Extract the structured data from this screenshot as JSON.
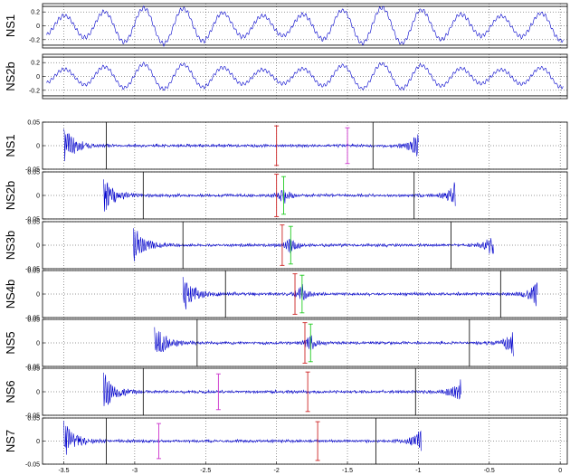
{
  "chart_data": [
    {
      "type": "line",
      "panel": "top",
      "ylabel": "NS1",
      "ylim": [
        -0.32,
        0.32
      ],
      "yticks": [
        -0.2,
        0,
        0.2
      ],
      "xlim": [
        -3.65,
        0.05
      ],
      "grid": true,
      "hlines": [
        -0.28,
        0.28
      ],
      "color": "#0000cc",
      "signal": {
        "kind": "oscillation",
        "periods": 13,
        "amplitude": 0.2,
        "envelope": 0.3,
        "noise": 0.035
      }
    },
    {
      "type": "line",
      "panel": "top",
      "ylabel": "NS2b",
      "ylim": [
        -0.32,
        0.32
      ],
      "yticks": [
        -0.2,
        0,
        0.2
      ],
      "xlim": [
        -3.65,
        0.05
      ],
      "grid": true,
      "hlines": [
        -0.28,
        0.28
      ],
      "color": "#0000cc",
      "signal": {
        "kind": "oscillation",
        "periods": 13,
        "amplitude": 0.14,
        "envelope": 0.3,
        "noise": 0.03
      }
    },
    {
      "type": "line",
      "panel": "event",
      "ylabel": "NS1",
      "ylim": [
        -0.05,
        0.05
      ],
      "yticks": [
        -0.05,
        0,
        0.05
      ],
      "xlim": [
        -3.65,
        0.05
      ],
      "grid": true,
      "trace": [
        -3.5,
        -1.0
      ],
      "vlines": [
        {
          "x": -3.2,
          "color": "#000000"
        },
        {
          "x": -1.32,
          "color": "#000000"
        }
      ],
      "error_bars": [
        {
          "x": -2.0,
          "y_low": -0.042,
          "y_high": 0.042,
          "color": "#cc2222"
        },
        {
          "x": -1.5,
          "y_low": -0.038,
          "y_high": 0.038,
          "color": "#cc33cc"
        }
      ]
    },
    {
      "type": "line",
      "panel": "event",
      "ylabel": "NS2b",
      "ylim": [
        -0.05,
        0.05
      ],
      "yticks": [
        -0.05,
        0,
        0.05
      ],
      "xlim": [
        -3.65,
        0.05
      ],
      "grid": true,
      "trace": [
        -3.22,
        -0.74
      ],
      "vlines": [
        {
          "x": -2.94,
          "color": "#000000"
        },
        {
          "x": -1.03,
          "color": "#000000"
        }
      ],
      "error_bars": [
        {
          "x": -2.0,
          "y_low": -0.045,
          "y_high": 0.045,
          "color": "#cc2222"
        },
        {
          "x": -1.95,
          "y_low": -0.04,
          "y_high": 0.04,
          "color": "#22cc22"
        }
      ]
    },
    {
      "type": "line",
      "panel": "event",
      "ylabel": "NS3b",
      "ylim": [
        -0.05,
        0.05
      ],
      "yticks": [
        -0.05,
        0,
        0.05
      ],
      "xlim": [
        -3.65,
        0.05
      ],
      "grid": true,
      "trace": [
        -3.01,
        -0.47
      ],
      "vlines": [
        {
          "x": -2.66,
          "color": "#000000"
        },
        {
          "x": -0.77,
          "color": "#000000"
        }
      ],
      "error_bars": [
        {
          "x": -1.96,
          "y_low": -0.043,
          "y_high": 0.043,
          "color": "#cc2222"
        },
        {
          "x": -1.9,
          "y_low": -0.04,
          "y_high": 0.04,
          "color": "#22cc22"
        }
      ]
    },
    {
      "type": "line",
      "panel": "event",
      "ylabel": "NS4b",
      "ylim": [
        -0.05,
        0.05
      ],
      "yticks": [
        -0.05,
        0,
        0.05
      ],
      "xlim": [
        -3.65,
        0.05
      ],
      "grid": true,
      "trace": [
        -2.66,
        -0.16
      ],
      "vlines": [
        {
          "x": -2.36,
          "color": "#000000"
        },
        {
          "x": -0.42,
          "color": "#000000"
        }
      ],
      "error_bars": [
        {
          "x": -1.87,
          "y_low": -0.043,
          "y_high": 0.043,
          "color": "#cc2222"
        },
        {
          "x": -1.82,
          "y_low": -0.04,
          "y_high": 0.04,
          "color": "#22cc22"
        }
      ]
    },
    {
      "type": "line",
      "panel": "event",
      "ylabel": "NS5",
      "ylim": [
        -0.05,
        0.05
      ],
      "yticks": [
        -0.05,
        0,
        0.05
      ],
      "xlim": [
        -3.65,
        0.05
      ],
      "grid": true,
      "trace": [
        -2.86,
        -0.33
      ],
      "vlines": [
        {
          "x": -2.56,
          "color": "#000000"
        },
        {
          "x": -0.64,
          "color": "#000000"
        }
      ],
      "error_bars": [
        {
          "x": -1.8,
          "y_low": -0.043,
          "y_high": 0.043,
          "color": "#cc2222"
        },
        {
          "x": -1.76,
          "y_low": -0.04,
          "y_high": 0.04,
          "color": "#22cc22"
        }
      ]
    },
    {
      "type": "line",
      "panel": "event",
      "ylabel": "NS6",
      "ylim": [
        -0.05,
        0.05
      ],
      "yticks": [
        -0.05,
        0,
        0.05
      ],
      "xlim": [
        -3.65,
        0.05
      ],
      "grid": true,
      "trace": [
        -3.22,
        -0.7
      ],
      "vlines": [
        {
          "x": -2.94,
          "color": "#000000"
        },
        {
          "x": -1.02,
          "color": "#000000"
        }
      ],
      "error_bars": [
        {
          "x": -2.41,
          "y_low": -0.038,
          "y_high": 0.038,
          "color": "#cc33cc"
        },
        {
          "x": -1.78,
          "y_low": -0.042,
          "y_high": 0.042,
          "color": "#cc2222"
        }
      ]
    },
    {
      "type": "line",
      "panel": "event",
      "ylabel": "NS7",
      "ylim": [
        -0.05,
        0.05
      ],
      "yticks": [
        -0.05,
        0,
        0.05
      ],
      "xlim": [
        -3.65,
        0.05
      ],
      "grid": true,
      "trace": [
        -3.5,
        -0.98
      ],
      "vlines": [
        {
          "x": -3.2,
          "color": "#000000"
        },
        {
          "x": -1.3,
          "color": "#000000"
        }
      ],
      "error_bars": [
        {
          "x": -2.83,
          "y_low": -0.038,
          "y_high": 0.038,
          "color": "#cc33cc"
        },
        {
          "x": -1.71,
          "y_low": -0.042,
          "y_high": 0.042,
          "color": "#cc2222"
        }
      ],
      "xticks": [
        -3.5,
        -3,
        -2.5,
        -2,
        -1.5,
        -1,
        -0.5,
        0
      ],
      "xticklabels": [
        "-3.5",
        "-3",
        "-2.5",
        "-2",
        "-1.5",
        "-1",
        "-0.5",
        "0"
      ]
    }
  ]
}
